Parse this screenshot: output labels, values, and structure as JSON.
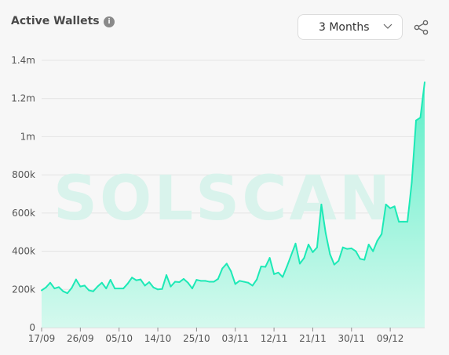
{
  "header": {
    "title": "Active Wallets",
    "info_icon": "info-icon",
    "range_select": {
      "selected": "3 Months",
      "icon": "chevron-down-icon"
    },
    "share_icon": "share-icon"
  },
  "watermark": "SOLSCAN",
  "colors": {
    "line": "#1de9b6",
    "fill_top": "#5cefc8",
    "fill_bottom": "#d5f9ee",
    "watermark": "#d9f3ec"
  },
  "chart_data": {
    "type": "area",
    "title": "Active Wallets",
    "xlabel": "",
    "ylabel": "",
    "ylim": [
      0,
      1400000
    ],
    "grid": true,
    "y_ticks": [
      0,
      200000,
      400000,
      600000,
      800000,
      1000000,
      1200000,
      1400000
    ],
    "y_tick_labels": [
      "0",
      "200k",
      "400k",
      "600k",
      "800k",
      "1m",
      "1.2m",
      "1.4m"
    ],
    "x_tick_labels": [
      "17/09",
      "26/09",
      "05/10",
      "14/10",
      "25/10",
      "03/11",
      "12/11",
      "21/11",
      "30/11",
      "09/12"
    ],
    "x_tick_index": [
      0,
      9,
      18,
      27,
      36,
      45,
      54,
      63,
      72,
      81
    ],
    "series": [
      {
        "values": [
          195000,
          210000,
          235000,
          205000,
          212000,
          190000,
          180000,
          208000,
          252000,
          215000,
          220000,
          195000,
          190000,
          215000,
          235000,
          205000,
          250000,
          205000,
          205000,
          205000,
          230000,
          262000,
          248000,
          252000,
          220000,
          238000,
          210000,
          200000,
          202000,
          275000,
          215000,
          240000,
          238000,
          255000,
          235000,
          205000,
          250000,
          245000,
          245000,
          240000,
          240000,
          255000,
          310000,
          335000,
          295000,
          228000,
          245000,
          240000,
          235000,
          220000,
          252000,
          320000,
          318000,
          365000,
          280000,
          288000,
          265000,
          320000,
          380000,
          440000,
          335000,
          365000,
          435000,
          395000,
          420000,
          645000,
          495000,
          385000,
          330000,
          350000,
          420000,
          412000,
          415000,
          400000,
          360000,
          355000,
          435000,
          400000,
          455000,
          490000,
          645000,
          625000,
          635000,
          555000,
          555000,
          555000,
          760000,
          1085000,
          1100000,
          1285000
        ]
      }
    ]
  }
}
